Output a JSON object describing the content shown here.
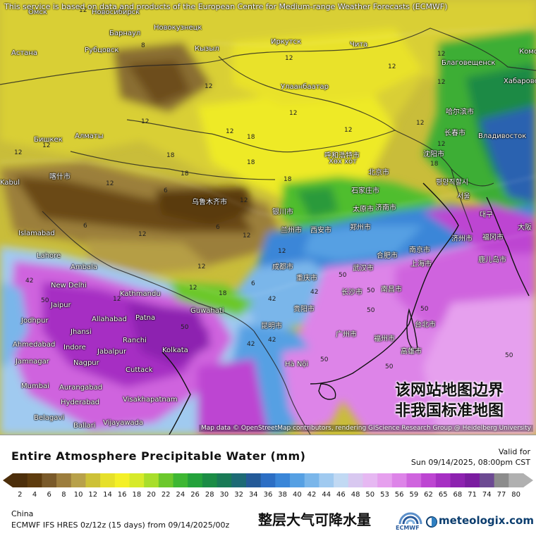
{
  "map": {
    "top_note": "This service is based on data and products of the European Centre for Medium-range Weather Forecasts (ECMWF)",
    "attribution": "Map data © OpenStreetMap contributors, rendering GIScience Research Group @ Heidelberg University",
    "disclaimer_line1": "该网站地图边界",
    "disclaimer_line2": "非我国标准地图",
    "cities": [
      "Омск",
      "Новосибирск",
      "Барнаул",
      "Новокузнецк",
      "Астана",
      "Рубцовск",
      "Кызыл",
      "Иркутск",
      "Чита",
      "Благовещенск",
      "Хабаровск",
      "Улаанбаатар",
      "Бишкек",
      "Алматы",
      "乌鲁木齐市",
      "呼和浩特市",
      "Хөх хот",
      "北京市",
      "沈阳市",
      "Владивосток",
      "哈尔滨市",
      "长春市",
      "평양직할시",
      "서울",
      "喀什市",
      "Islamabad",
      "Lahore",
      "石家庄市",
      "济南市",
      "西安市",
      "郑州市",
      "兰州市",
      "成都市",
      "重庆市",
      "合肥市",
      "南京市",
      "武汉市",
      "上海市",
      "New Delhi",
      "Kathmandu",
      "长沙市",
      "南昌市",
      "Guwahati",
      "贵阳市",
      "昆明市",
      "台北市",
      "Jaipur",
      "Jodhpur",
      "Allahabad",
      "Patna",
      "Jhansi",
      "Ranchi",
      "Kolkata",
      "Ahmedabad",
      "Indore",
      "Jabalpur",
      "广州市",
      "福州市",
      "Jamnagar",
      "Nagpur",
      "Cuttack",
      "高雄市",
      "Hà Nội",
      "Mumbai",
      "Aurangabad",
      "Hyderabad",
      "Visakhapatnam",
      "Belagavi",
      "Ballari",
      "Vijayawada",
      "Комс",
      "Ambala",
      "太原市",
      "银川市",
      "鹿儿岛市",
      "대구",
      "济州市",
      "福冈市",
      "大阪",
      "Kabul"
    ],
    "values": [
      "12",
      "8",
      "12",
      "12",
      "12",
      "12",
      "12",
      "18",
      "12",
      "12",
      "12",
      "12",
      "12",
      "18",
      "12",
      "18",
      "18",
      "12",
      "12",
      "6",
      "18",
      "12",
      "18",
      "6",
      "12",
      "6",
      "12",
      "12",
      "18",
      "12",
      "6",
      "12",
      "12",
      "12",
      "42",
      "50",
      "42",
      "50",
      "50",
      "50",
      "42",
      "50",
      "50",
      "42",
      "42",
      "50",
      "50",
      "50"
    ]
  },
  "legend": {
    "title": "Entire Atmosphere Precipitable Water (mm)",
    "valid_for": "Valid for",
    "valid_time": "Sun 09/14/2025, 08:00pm CST",
    "ticks": [
      "2",
      "4",
      "6",
      "8",
      "10",
      "12",
      "14",
      "16",
      "18",
      "20",
      "22",
      "24",
      "26",
      "28",
      "30",
      "32",
      "34",
      "36",
      "38",
      "40",
      "42",
      "44",
      "46",
      "48",
      "50",
      "53",
      "56",
      "59",
      "62",
      "65",
      "68",
      "71",
      "74",
      "77",
      "80"
    ],
    "colors": [
      "#4d2f0b",
      "#5e3c0e",
      "#7a5a2a",
      "#9c7d3d",
      "#b8a14a",
      "#cdc137",
      "#e6e02a",
      "#f4f027",
      "#d7ea2a",
      "#a8de2b",
      "#6cc82c",
      "#3eb733",
      "#24a23b",
      "#1b8c45",
      "#197a56",
      "#1d6a75",
      "#245a98",
      "#2c6ec4",
      "#3a86d8",
      "#56a0e3",
      "#7ab6ea",
      "#a0caf0",
      "#c1d9f3",
      "#d8c8f0",
      "#e6b8f2",
      "#e6a0ee",
      "#dd84e8",
      "#cf64de",
      "#bd45d2",
      "#a62fc3",
      "#8d22b0",
      "#7a1ca0",
      "#6c4a92",
      "#8c8c8c",
      "#b0b0b0"
    ],
    "region": "China",
    "model": "ECMWF IFS HRES 0z/12z (15 days) from 09/14/2025/00z",
    "title_zh": "整层大气可降水量",
    "ecmwf_label": "ECMWF",
    "brand": "meteologix.com"
  }
}
